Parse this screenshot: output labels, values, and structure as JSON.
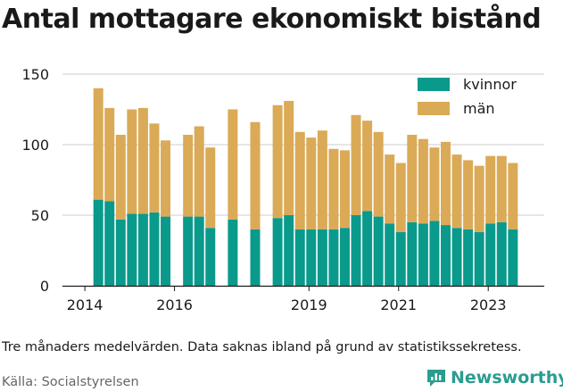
{
  "header": {
    "title": "Antal mottagare ekonomiskt bistånd"
  },
  "footer": {
    "note": "Tre månaders medelvärden. Data saknas ibland på grund av statistikssekretess.",
    "source": "Källa: Socialstyrelsen",
    "brand": "Newsworthy"
  },
  "colors": {
    "kvinnor": "#0a9a8c",
    "man": "#dbaa57",
    "grid": "#cccccc",
    "brand": "#2a9d8f"
  },
  "chart_data": {
    "type": "bar",
    "stacked": true,
    "title": "Antal mottagare ekonomiskt bistånd",
    "xlabel": "",
    "ylabel": "",
    "ylim": [
      0,
      150
    ],
    "yticks": [
      0,
      50,
      100,
      150
    ],
    "xticks": [
      {
        "label": "2014",
        "x": 2014.0
      },
      {
        "label": "2016",
        "x": 2016.0
      },
      {
        "label": "2019",
        "x": 2019.0
      },
      {
        "label": "2021",
        "x": 2021.0
      },
      {
        "label": "2023",
        "x": 2023.0
      }
    ],
    "xlim": [
      2013.5,
      2024.25
    ],
    "legend": {
      "placement": "top-right"
    },
    "grid": true,
    "series": [
      {
        "name": "kvinnor",
        "key": "kvinnor"
      },
      {
        "name": "män",
        "key": "man"
      }
    ],
    "points": [
      {
        "x": 2014.3,
        "kvinnor": 61,
        "man": 79
      },
      {
        "x": 2014.55,
        "kvinnor": 60,
        "man": 66
      },
      {
        "x": 2014.8,
        "kvinnor": 47,
        "man": 60
      },
      {
        "x": 2015.05,
        "kvinnor": 51,
        "man": 74
      },
      {
        "x": 2015.3,
        "kvinnor": 51,
        "man": 75
      },
      {
        "x": 2015.55,
        "kvinnor": 52,
        "man": 63
      },
      {
        "x": 2015.8,
        "kvinnor": 49,
        "man": 54
      },
      {
        "x": 2016.3,
        "kvinnor": 49,
        "man": 58
      },
      {
        "x": 2016.55,
        "kvinnor": 49,
        "man": 64
      },
      {
        "x": 2016.8,
        "kvinnor": 41,
        "man": 57
      },
      {
        "x": 2017.3,
        "kvinnor": 47,
        "man": 78
      },
      {
        "x": 2017.8,
        "kvinnor": 40,
        "man": 76
      },
      {
        "x": 2018.3,
        "kvinnor": 48,
        "man": 80
      },
      {
        "x": 2018.55,
        "kvinnor": 50,
        "man": 81
      },
      {
        "x": 2018.8,
        "kvinnor": 40,
        "man": 69
      },
      {
        "x": 2019.05,
        "kvinnor": 40,
        "man": 65
      },
      {
        "x": 2019.3,
        "kvinnor": 40,
        "man": 70
      },
      {
        "x": 2019.55,
        "kvinnor": 40,
        "man": 57
      },
      {
        "x": 2019.8,
        "kvinnor": 41,
        "man": 55
      },
      {
        "x": 2020.05,
        "kvinnor": 50,
        "man": 71
      },
      {
        "x": 2020.3,
        "kvinnor": 53,
        "man": 64
      },
      {
        "x": 2020.55,
        "kvinnor": 49,
        "man": 60
      },
      {
        "x": 2020.8,
        "kvinnor": 44,
        "man": 49
      },
      {
        "x": 2021.05,
        "kvinnor": 38,
        "man": 49
      },
      {
        "x": 2021.3,
        "kvinnor": 45,
        "man": 62
      },
      {
        "x": 2021.55,
        "kvinnor": 44,
        "man": 60
      },
      {
        "x": 2021.8,
        "kvinnor": 46,
        "man": 52
      },
      {
        "x": 2022.05,
        "kvinnor": 43,
        "man": 59
      },
      {
        "x": 2022.3,
        "kvinnor": 41,
        "man": 52
      },
      {
        "x": 2022.55,
        "kvinnor": 40,
        "man": 49
      },
      {
        "x": 2022.8,
        "kvinnor": 38,
        "man": 47
      },
      {
        "x": 2023.05,
        "kvinnor": 44,
        "man": 48
      },
      {
        "x": 2023.3,
        "kvinnor": 45,
        "man": 47
      },
      {
        "x": 2023.55,
        "kvinnor": 40,
        "man": 47
      }
    ]
  }
}
